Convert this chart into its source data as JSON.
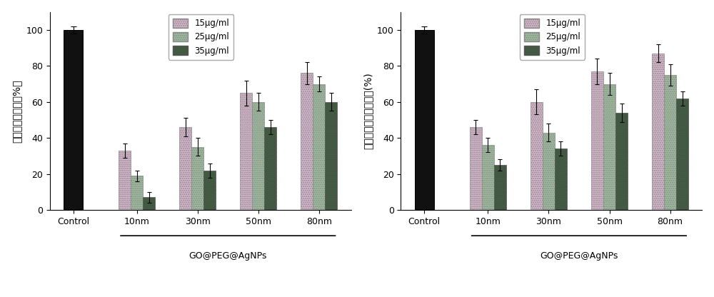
{
  "chart1": {
    "ylabel": "大肠杆菌存活率（%）",
    "xlabel_sub": "GO@PEG@AgNPs",
    "categories": [
      "Control",
      "10nm",
      "30nm",
      "50nm",
      "80nm"
    ],
    "control_value": 100,
    "control_err": 2,
    "values_15": [
      33,
      46,
      65,
      76
    ],
    "values_25": [
      19,
      35,
      60,
      70
    ],
    "values_35": [
      7,
      22,
      46,
      60
    ],
    "err_15": [
      4,
      5,
      7,
      6
    ],
    "err_25": [
      3,
      5,
      5,
      4
    ],
    "err_35": [
      3,
      4,
      4,
      5
    ],
    "ylim": [
      0,
      110
    ],
    "yticks": [
      0,
      20,
      40,
      60,
      80,
      100
    ]
  },
  "chart2": {
    "ylabel": "金黄色葡萄球菌存活率(%)",
    "xlabel_sub": "GO@PEG@AgNPs",
    "categories": [
      "Control",
      "10nm",
      "30nm",
      "50nm",
      "80nm"
    ],
    "control_value": 100,
    "control_err": 2,
    "values_15": [
      46,
      60,
      77,
      87
    ],
    "values_25": [
      36,
      43,
      70,
      75
    ],
    "values_35": [
      25,
      34,
      54,
      62
    ],
    "err_15": [
      4,
      7,
      7,
      5
    ],
    "err_25": [
      4,
      5,
      6,
      6
    ],
    "err_35": [
      3,
      4,
      5,
      4
    ],
    "ylim": [
      0,
      110
    ],
    "yticks": [
      0,
      20,
      40,
      60,
      80,
      100
    ]
  },
  "legend_labels": [
    "15μg/ml",
    "25μg/ml",
    "35μg/ml"
  ],
  "color_15": "#dbb8d0",
  "color_25": "#9dbf9d",
  "color_35": "#3a5c3a",
  "color_control": "#111111"
}
